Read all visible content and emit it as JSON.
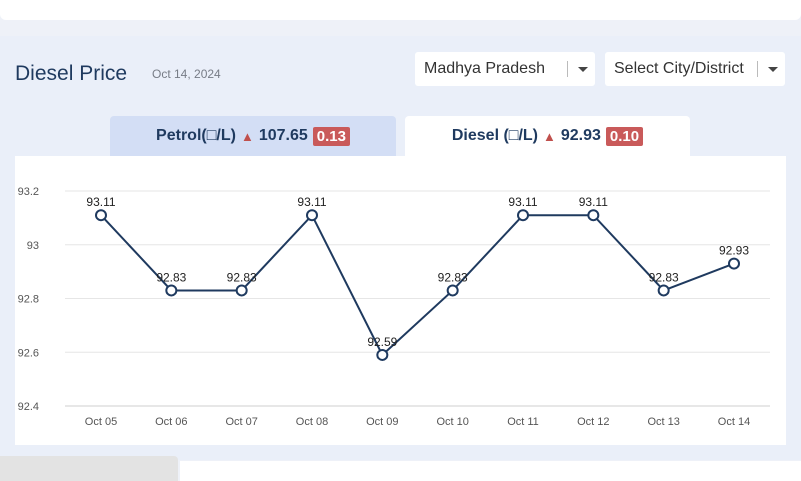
{
  "header": {
    "title": "Diesel Price",
    "date": "Oct 14, 2024"
  },
  "filters": {
    "state": "Madhya Pradesh",
    "city": "Select City/District"
  },
  "tabs": {
    "petrol": {
      "label": "Petrol(□/L)",
      "price": "107.65",
      "change": "0.13"
    },
    "diesel": {
      "label": "Diesel (□/L)",
      "price": "92.93",
      "change": "0.10"
    }
  },
  "colors": {
    "line": "#1f3a5f",
    "badge": "#c95a5a",
    "arrow_up": "#c0504d"
  },
  "chart_data": {
    "type": "line",
    "title": "",
    "xlabel": "",
    "ylabel": "",
    "categories": [
      "Oct 05",
      "Oct 06",
      "Oct 07",
      "Oct 08",
      "Oct 09",
      "Oct 10",
      "Oct 11",
      "Oct 12",
      "Oct 13",
      "Oct 14"
    ],
    "values": [
      93.11,
      92.83,
      92.83,
      93.11,
      92.59,
      92.83,
      93.11,
      93.11,
      92.83,
      92.93
    ],
    "data_labels": [
      "93.11",
      "92.83",
      "92.83",
      "93.11",
      "92.59",
      "92.83",
      "93.11",
      "93.11",
      "92.83",
      "92.93"
    ],
    "yticks": [
      92.4,
      92.6,
      92.8,
      93,
      93.2
    ],
    "ytick_labels": [
      "92.4",
      "92.6",
      "92.8",
      "93",
      "93.2"
    ],
    "ylim": [
      92.4,
      93.2
    ],
    "grid": true,
    "legend": false
  }
}
